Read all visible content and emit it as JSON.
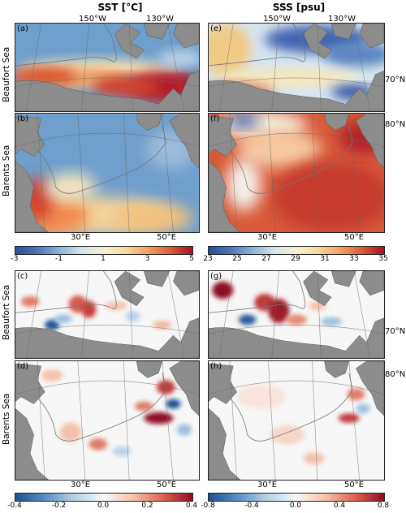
{
  "columns": [
    {
      "id": "sst",
      "title": "SST [°C]"
    },
    {
      "id": "sss",
      "title": "SSS [psu]"
    }
  ],
  "rows": [
    {
      "id": "beaufort",
      "label": "Beaufort Sea"
    },
    {
      "id": "barents",
      "label": "Barents Sea"
    }
  ],
  "panels": [
    {
      "letter": "(a)",
      "var": "sst",
      "region": "beaufort",
      "kind": "mean"
    },
    {
      "letter": "(b)",
      "var": "sst",
      "region": "barents",
      "kind": "mean"
    },
    {
      "letter": "(c)",
      "var": "sst",
      "region": "beaufort",
      "kind": "diff"
    },
    {
      "letter": "(d)",
      "var": "sst",
      "region": "barents",
      "kind": "diff"
    },
    {
      "letter": "(e)",
      "var": "sss",
      "region": "beaufort",
      "kind": "mean"
    },
    {
      "letter": "(f)",
      "var": "sss",
      "region": "barents",
      "kind": "mean"
    },
    {
      "letter": "(g)",
      "var": "sss",
      "region": "beaufort",
      "kind": "diff"
    },
    {
      "letter": "(h)",
      "var": "sss",
      "region": "barents",
      "kind": "diff"
    }
  ],
  "lon_labels_top": [
    "150°W",
    "130°W"
  ],
  "lon_labels_bottom": [
    "30°E",
    "50°E"
  ],
  "lat_labels": {
    "beaufort": "70°N",
    "barents": "80°N"
  },
  "colorbars": {
    "sst_mean": {
      "ticks": [
        "-3",
        "-1",
        "1",
        "3",
        "5"
      ]
    },
    "sss_mean": {
      "ticks": [
        "23",
        "25",
        "27",
        "29",
        "31",
        "33",
        "35"
      ]
    },
    "sst_diff": {
      "ticks": [
        "-0.4",
        "-0.2",
        "0.0",
        "0.2",
        "0.4"
      ]
    },
    "sss_diff": {
      "ticks": [
        "-0.8",
        "-0.4",
        "0.0",
        "0.4",
        "0.8"
      ]
    }
  },
  "colors": {
    "land": "#8c8c8c",
    "rdbu_low": "#2a4d9e",
    "rdbu_high": "#a5122a"
  }
}
